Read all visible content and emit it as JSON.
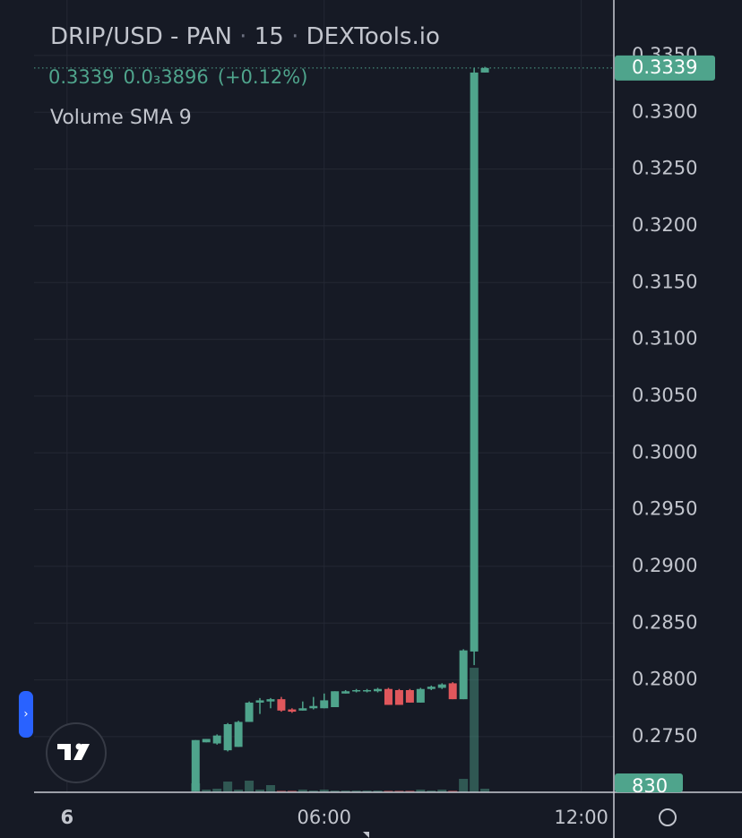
{
  "chart_data": {
    "type": "candlestick",
    "title": "DRIP/USD - PAN",
    "interval": "15",
    "source": "DEXTools.io",
    "change": "0.0₃3896",
    "change_pct": "(+0.12%)",
    "indicator": "Volume SMA 9",
    "x": [
      3,
      3.25,
      3.5,
      3.75,
      4,
      4.25,
      4.5,
      4.75,
      5,
      5.25,
      5.5,
      5.75,
      6,
      6.25,
      6.5,
      6.75,
      7,
      7.25,
      7.5,
      7.75,
      8,
      8.25,
      8.5,
      8.75,
      9,
      9.25,
      9.5,
      9.75
    ],
    "open": [
      0.2702,
      0.2745,
      0.2744,
      0.2738,
      0.2741,
      0.2763,
      0.278,
      0.2781,
      0.2783,
      0.2774,
      0.2773,
      0.2775,
      0.2775,
      0.2776,
      0.2788,
      0.279,
      0.279,
      0.279,
      0.2792,
      0.2791,
      0.2791,
      0.278,
      0.2792,
      0.2793,
      0.2797,
      0.2783,
      0.2825,
      0.3335
    ],
    "high": [
      0.2747,
      0.2748,
      0.2752,
      0.2762,
      0.2764,
      0.2781,
      0.2784,
      0.2784,
      0.2785,
      0.2775,
      0.2781,
      0.2785,
      0.2788,
      0.279,
      0.2791,
      0.2792,
      0.2792,
      0.2793,
      0.2793,
      0.2792,
      0.2792,
      0.2793,
      0.2795,
      0.2797,
      0.2798,
      0.2827,
      0.3339,
      0.334
    ],
    "low": [
      0.2702,
      0.2745,
      0.2743,
      0.2737,
      0.2741,
      0.2763,
      0.277,
      0.2775,
      0.2772,
      0.2771,
      0.2773,
      0.2774,
      0.2775,
      0.2776,
      0.2788,
      0.2789,
      0.2789,
      0.2789,
      0.2778,
      0.2778,
      0.278,
      0.278,
      0.2791,
      0.2792,
      0.2783,
      0.2783,
      0.2813,
      0.3335
    ],
    "close": [
      0.2747,
      0.2748,
      0.2751,
      0.2761,
      0.2763,
      0.278,
      0.2782,
      0.2783,
      0.2773,
      0.2772,
      0.2775,
      0.2777,
      0.2782,
      0.279,
      0.279,
      0.2791,
      0.2791,
      0.2792,
      0.2778,
      0.2778,
      0.278,
      0.2792,
      0.2794,
      0.2796,
      0.2783,
      0.2826,
      0.3335,
      0.3339
    ],
    "volume": [
      2070,
      620,
      830,
      2480,
      620,
      2690,
      620,
      1660,
      410,
      410,
      620,
      410,
      620,
      410,
      410,
      410,
      410,
      410,
      410,
      410,
      410,
      620,
      410,
      620,
      410,
      3100,
      28770,
      830
    ],
    "volume_ylim": [
      0,
      181000
    ],
    "xlim": [
      -0.77,
      12.76
    ],
    "xticks": [
      {
        "value": 0,
        "label": "6"
      },
      {
        "value": 6,
        "label": "06:00"
      },
      {
        "value": 12,
        "label": "12:00"
      }
    ],
    "ylim": [
      0.2701,
      0.3391
    ],
    "yticks": [
      {
        "value": 0.275,
        "label": "0.2750"
      },
      {
        "value": 0.28,
        "label": "0.2800"
      },
      {
        "value": 0.285,
        "label": "0.2850"
      },
      {
        "value": 0.29,
        "label": "0.2900"
      },
      {
        "value": 0.295,
        "label": "0.2950"
      },
      {
        "value": 0.3,
        "label": "0.3000"
      },
      {
        "value": 0.305,
        "label": "0.3050"
      },
      {
        "value": 0.31,
        "label": "0.3100"
      },
      {
        "value": 0.315,
        "label": "0.3150"
      },
      {
        "value": 0.32,
        "label": "0.3200"
      },
      {
        "value": 0.325,
        "label": "0.3250"
      },
      {
        "value": 0.33,
        "label": "0.3300"
      },
      {
        "value": 0.335,
        "label": "0.3350"
      }
    ],
    "grid": true,
    "up_color": "#4fa48c",
    "down_color": "#e0575c"
  }
}
